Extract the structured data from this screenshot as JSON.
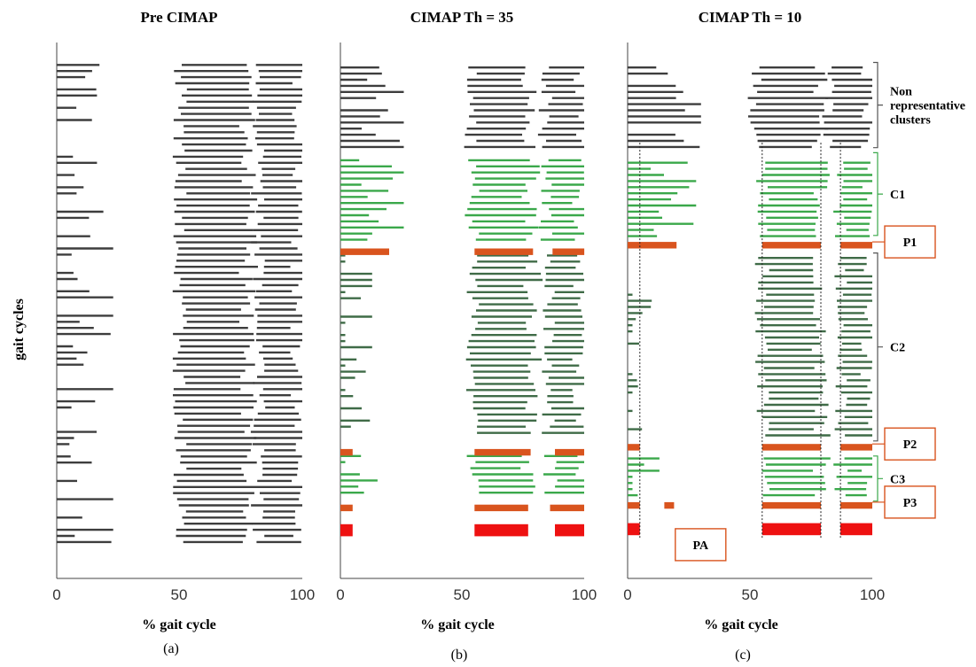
{
  "figure": {
    "ylabel": "gait cycles",
    "colors": {
      "black": "#3d3d3d",
      "green": "#3aa84a",
      "darkgreen": "#3f6b47",
      "prototype": "#d9541e",
      "pa": "#ee1111",
      "box": "#d9541e",
      "bracket_gray": "#555555",
      "bracket_green": "#3aa84a"
    }
  },
  "chart_data": [
    {
      "type": "activation-intervals",
      "id": "a",
      "title": "Pre CIMAP",
      "xlabel": "% gait cycle",
      "panel_label": "(a)",
      "xlim": [
        0,
        100
      ],
      "xticks": [
        "0",
        "50",
        "100"
      ],
      "ylim": [
        0,
        100
      ],
      "y_direction": "top-to-bottom",
      "grid": false,
      "groups": [
        {
          "from": 2,
          "to": 98,
          "step": 1.22,
          "color": "black",
          "kind": "cycles",
          "phases": [
            {
              "on": 0,
              "off": 15,
              "p": 0.6
            },
            {
              "on": 50,
              "off": 78,
              "p": 1.0
            },
            {
              "on": 82,
              "off": 99,
              "p": 1.0
            }
          ]
        }
      ],
      "prototypes": []
    },
    {
      "type": "activation-intervals",
      "id": "b",
      "title": "CIMAP Th = 35",
      "xlabel": "% gait cycle",
      "panel_label": "(b)",
      "xlim": [
        0,
        100
      ],
      "xticks": [
        "0",
        "50",
        "100"
      ],
      "ylim": [
        0,
        100
      ],
      "y_direction": "top-to-bottom",
      "grid": false,
      "groups": [
        {
          "from": 2.5,
          "to": 19.5,
          "step": 1.22,
          "color": "black",
          "kind": "cycles",
          "phases": [
            {
              "on": 0,
              "off": 18,
              "p": 0.85
            },
            {
              "on": 53,
              "off": 78,
              "p": 1.0
            },
            {
              "on": 84,
              "off": 99,
              "p": 1.0
            }
          ]
        },
        {
          "from": 21.0,
          "to": 37.0,
          "step": 1.22,
          "color": "green",
          "kind": "cycles",
          "phases": [
            {
              "on": 0,
              "off": 18,
              "p": 1.0
            },
            {
              "on": 54,
              "off": 78,
              "p": 1.0
            },
            {
              "on": 84,
              "off": 99,
              "p": 1.0
            }
          ]
        },
        {
          "from": 40.0,
          "to": 76.5,
          "step": 1.22,
          "color": "darkgreen",
          "kind": "cycles",
          "phases": [
            {
              "on": 0,
              "off": 5,
              "p": 0.7
            },
            {
              "on": 54,
              "off": 79,
              "p": 1.0
            },
            {
              "on": 85,
              "off": 99,
              "p": 1.0
            }
          ]
        },
        {
          "from": 80.0,
          "to": 88.0,
          "step": 1.22,
          "color": "green",
          "kind": "cycles",
          "phases": [
            {
              "on": 0,
              "off": 8,
              "p": 0.8
            },
            {
              "on": 54,
              "off": 76,
              "p": 1.0
            },
            {
              "on": 86,
              "off": 99,
              "p": 1.0
            }
          ]
        }
      ],
      "prototypes": [
        {
          "y": 38.6,
          "h": 1.3,
          "color": "prototype",
          "intervals": [
            [
              0,
              20
            ],
            [
              55,
              79
            ],
            [
              87,
              100
            ]
          ]
        },
        {
          "y": 78.6,
          "h": 1.3,
          "color": "prototype",
          "intervals": [
            [
              0,
              5
            ],
            [
              55,
              78
            ],
            [
              88,
              100
            ]
          ]
        },
        {
          "y": 89.7,
          "h": 1.3,
          "color": "prototype",
          "intervals": [
            [
              0,
              5
            ],
            [
              55,
              77
            ],
            [
              86,
              100
            ]
          ]
        },
        {
          "y": 93.6,
          "h": 2.4,
          "color": "pa",
          "intervals": [
            [
              0,
              5
            ],
            [
              55,
              77
            ],
            [
              88,
              100
            ]
          ]
        }
      ]
    },
    {
      "type": "activation-intervals",
      "id": "c",
      "title": "CIMAP Th = 10",
      "xlabel": "% gait cycle",
      "panel_label": "(c)",
      "xlim": [
        0,
        100
      ],
      "xticks": [
        "0",
        "50",
        "100"
      ],
      "ylim": [
        0,
        100
      ],
      "y_direction": "top-to-bottom",
      "grid": false,
      "groups": [
        {
          "from": 2.5,
          "to": 19.5,
          "step": 1.22,
          "color": "black",
          "kind": "cycles",
          "phases": [
            {
              "on": 0,
              "off": 22,
              "p": 0.9
            },
            {
              "on": 52,
              "off": 78,
              "p": 1.0
            },
            {
              "on": 82,
              "off": 99,
              "p": 1.0
            }
          ]
        },
        {
          "from": 21.5,
          "to": 36.5,
          "step": 1.22,
          "color": "green",
          "kind": "cycles",
          "phases": [
            {
              "on": 0,
              "off": 20,
              "p": 1.0
            },
            {
              "on": 55,
              "off": 79,
              "p": 1.0
            },
            {
              "on": 87,
              "off": 99,
              "p": 1.0
            }
          ]
        },
        {
          "from": 40.5,
          "to": 76.5,
          "step": 1.22,
          "color": "darkgreen",
          "kind": "cycles",
          "phases": [
            {
              "on": 0,
              "off": 5,
              "p": 0.5
            },
            {
              "on": 55,
              "off": 79,
              "p": 1.0
            },
            {
              "on": 87,
              "off": 99,
              "p": 1.0
            }
          ]
        },
        {
          "from": 80.5,
          "to": 88.5,
          "step": 1.22,
          "color": "green",
          "kind": "cycles",
          "phases": [
            {
              "on": 0,
              "off": 5,
              "p": 0.6
            },
            {
              "on": 55,
              "off": 79,
              "p": 1.0
            },
            {
              "on": 87,
              "off": 99,
              "p": 1.0
            }
          ]
        }
      ],
      "prototypes": [
        {
          "y": 37.3,
          "h": 1.3,
          "color": "prototype",
          "intervals": [
            [
              0,
              20
            ],
            [
              55,
              79
            ],
            [
              87,
              100
            ]
          ]
        },
        {
          "y": 77.6,
          "h": 1.3,
          "color": "prototype",
          "intervals": [
            [
              0,
              5
            ],
            [
              55,
              79
            ],
            [
              87,
              100
            ]
          ]
        },
        {
          "y": 89.2,
          "h": 1.3,
          "color": "prototype",
          "intervals": [
            [
              0,
              5
            ],
            [
              15,
              19
            ],
            [
              55,
              79
            ],
            [
              87,
              100
            ]
          ]
        },
        {
          "y": 93.4,
          "h": 2.4,
          "color": "pa",
          "intervals": [
            [
              0,
              5
            ],
            [
              55,
              79
            ],
            [
              87,
              100
            ]
          ]
        }
      ],
      "reference_lines": [
        5,
        55,
        79,
        87
      ],
      "annotations": [
        {
          "label": "Non\nrepresentative\nclusters",
          "kind": "bracket",
          "color": "bracket_gray",
          "y0": 1.5,
          "y1": 18.5
        },
        {
          "label": "C1",
          "kind": "bracket",
          "color": "bracket_green",
          "y0": 19.5,
          "y1": 36.0
        },
        {
          "label": "P1",
          "kind": "box",
          "at": 37.3
        },
        {
          "label": "C2",
          "kind": "bracket",
          "color": "bracket_gray",
          "y0": 39.5,
          "y1": 77.0
        },
        {
          "label": "P2",
          "kind": "box",
          "at": 77.6
        },
        {
          "label": "C3",
          "kind": "bracket",
          "color": "bracket_green",
          "y0": 80.0,
          "y1": 89.0
        },
        {
          "label": "P3",
          "kind": "box",
          "at": 89.2
        },
        {
          "label": "PA",
          "kind": "box-inside",
          "at": 94.5
        }
      ]
    }
  ]
}
